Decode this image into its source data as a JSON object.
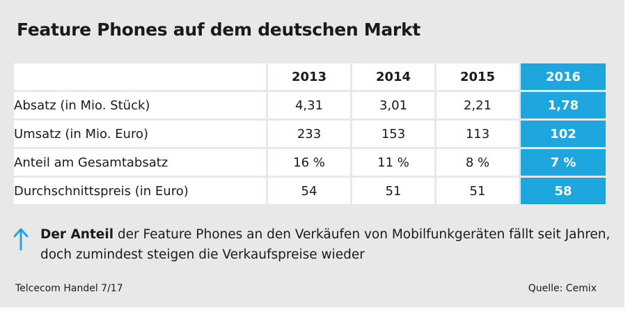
{
  "title": "Feature Phones auf dem deutschen Markt",
  "chart_data": {
    "type": "table",
    "title": "Feature Phones auf dem deutschen Markt",
    "columns": [
      "2013",
      "2014",
      "2015",
      "2016"
    ],
    "highlight_column": "2016",
    "highlight_color": "#1ea7de",
    "rows": [
      {
        "label": "Absatz (in Mio. Stück)",
        "values": [
          "4,31",
          "3,01",
          "2,21",
          "1,78"
        ]
      },
      {
        "label": "Umsatz (in Mio. Euro)",
        "values": [
          "233",
          "153",
          "113",
          "102"
        ]
      },
      {
        "label": "Anteil am Gesamtabsatz",
        "values": [
          "16 %",
          "11 %",
          "8 %",
          "7 %"
        ]
      },
      {
        "label": "Durchschnittspreis (in Euro)",
        "values": [
          "54",
          "51",
          "51",
          "58"
        ]
      }
    ]
  },
  "note": {
    "icon": "arrow-up-icon",
    "lead": "Der Anteil",
    "text": " der Feature Phones an den Verkäufen von Mobilfunkgeräten fällt seit Jahren, doch zumindest steigen die Verkaufspreise wieder"
  },
  "footer": {
    "left": "Telcecom Handel 7/17",
    "right": "Quelle: Cemix"
  }
}
